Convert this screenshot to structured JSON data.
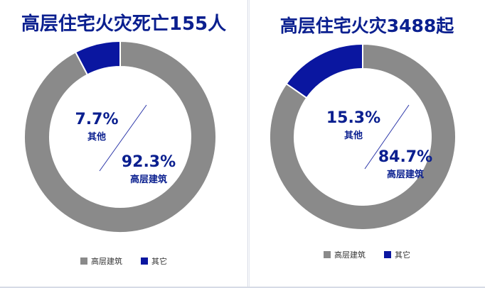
{
  "colors": {
    "building": "#8a8a8a",
    "other": "#0a16a0",
    "title": "#0a1f8f"
  },
  "legend": {
    "building_label": "高层建筑",
    "other_label": "其它"
  },
  "chart_data": [
    {
      "type": "pie",
      "title": "高层住宅火灾死亡155人",
      "slices": [
        {
          "label": "高层建筑",
          "value": 92.3,
          "display": "92.3%",
          "color": "#8a8a8a"
        },
        {
          "label": "其他",
          "value": 7.7,
          "display": "7.7%",
          "color": "#0a16a0"
        }
      ],
      "legend": [
        "高层建筑",
        "其它"
      ],
      "legend_position": "bottom"
    },
    {
      "type": "pie",
      "title": "高层住宅火灾3488起",
      "slices": [
        {
          "label": "高层建筑",
          "value": 84.7,
          "display": "84.7%",
          "color": "#8a8a8a"
        },
        {
          "label": "其他",
          "value": 15.3,
          "display": "15.3%",
          "color": "#0a16a0"
        }
      ],
      "legend": [
        "高层建筑",
        "其它"
      ],
      "legend_position": "bottom"
    }
  ]
}
